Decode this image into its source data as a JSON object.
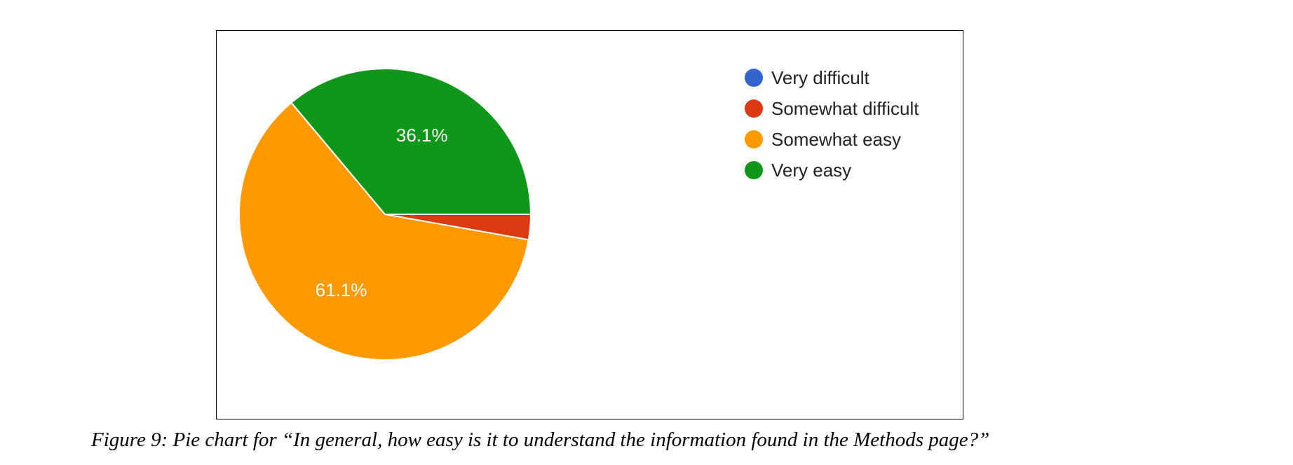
{
  "chart_data": {
    "type": "pie",
    "categories": [
      "Very difficult",
      "Somewhat difficult",
      "Somewhat easy",
      "Very easy"
    ],
    "values": [
      0.0,
      2.8,
      61.1,
      36.1
    ],
    "value_labels": [
      "",
      "",
      "61.1%",
      "36.1%"
    ],
    "colors": [
      "#3366cc",
      "#dc3912",
      "#ff9900",
      "#109618"
    ],
    "legend_position": "right"
  },
  "caption": "Figure 9: Pie chart for “In general, how easy is it to understand the information found in the Methods page?”"
}
